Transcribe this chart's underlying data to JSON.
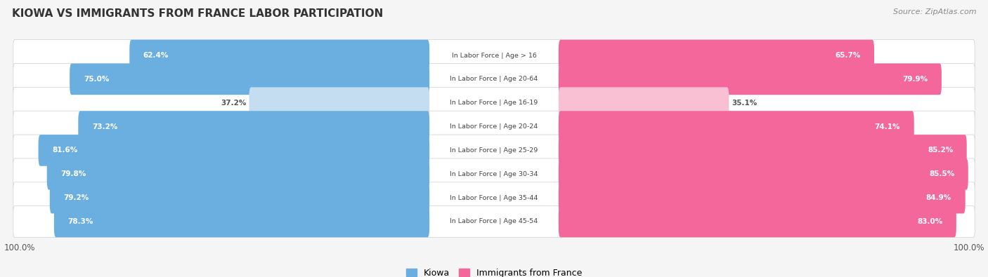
{
  "title": "KIOWA VS IMMIGRANTS FROM FRANCE LABOR PARTICIPATION",
  "source": "Source: ZipAtlas.com",
  "categories": [
    "In Labor Force | Age > 16",
    "In Labor Force | Age 20-64",
    "In Labor Force | Age 16-19",
    "In Labor Force | Age 20-24",
    "In Labor Force | Age 25-29",
    "In Labor Force | Age 30-34",
    "In Labor Force | Age 35-44",
    "In Labor Force | Age 45-54"
  ],
  "kiowa_values": [
    62.4,
    75.0,
    37.2,
    73.2,
    81.6,
    79.8,
    79.2,
    78.3
  ],
  "france_values": [
    65.7,
    79.9,
    35.1,
    74.1,
    85.2,
    85.5,
    84.9,
    83.0
  ],
  "kiowa_color": "#6aafe0",
  "kiowa_light_color": "#c5ddf0",
  "france_color": "#f4679a",
  "france_light_color": "#f9c0d4",
  "bg_color": "#f5f5f5",
  "row_bg": "#ebebeb",
  "row_highlight": "#e2e2e2",
  "white": "#ffffff",
  "max_value": 100.0,
  "legend_kiowa": "Kiowa",
  "legend_france": "Immigrants from France"
}
